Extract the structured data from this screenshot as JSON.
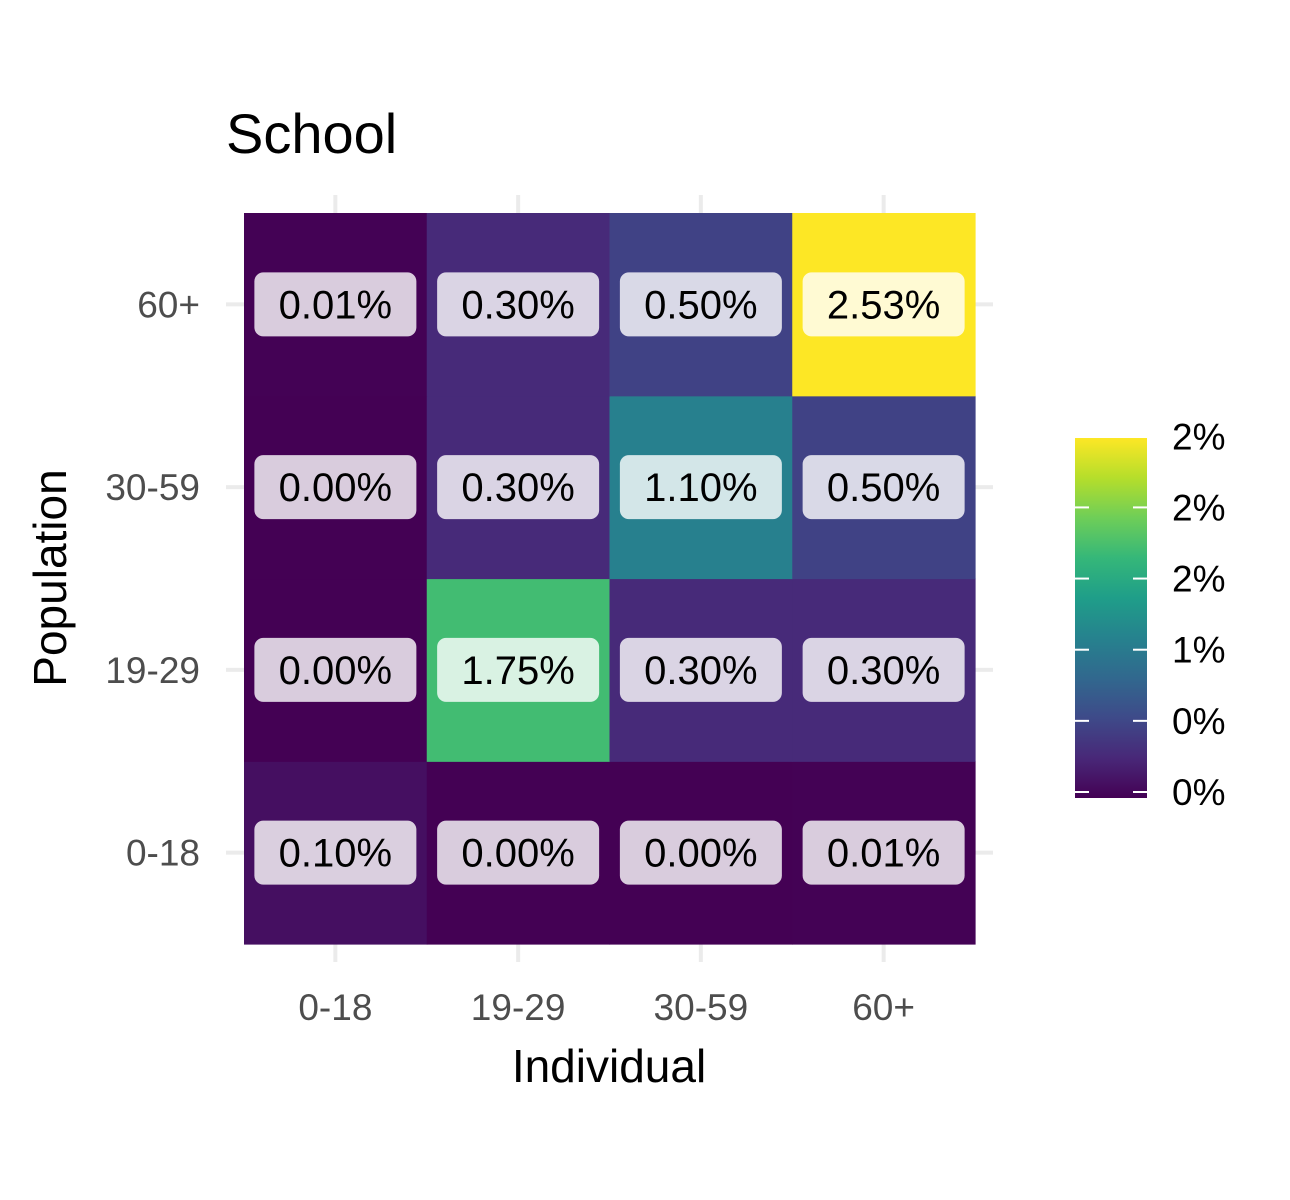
{
  "chart_data": {
    "type": "heatmap",
    "title": "School",
    "xlabel": "Individual",
    "ylabel": "Population",
    "x_categories": [
      "0-18",
      "19-29",
      "30-59",
      "60+"
    ],
    "y_categories": [
      "0-18",
      "19-29",
      "30-59",
      "60+"
    ],
    "cells": [
      {
        "x": "0-18",
        "y": "0-18",
        "value": 0.1,
        "label": "0.10%"
      },
      {
        "x": "19-29",
        "y": "0-18",
        "value": 0.0,
        "label": "0.00%"
      },
      {
        "x": "30-59",
        "y": "0-18",
        "value": 0.0,
        "label": "0.00%"
      },
      {
        "x": "60+",
        "y": "0-18",
        "value": 0.01,
        "label": "0.01%"
      },
      {
        "x": "0-18",
        "y": "19-29",
        "value": 0.0,
        "label": "0.00%"
      },
      {
        "x": "19-29",
        "y": "19-29",
        "value": 1.75,
        "label": "1.75%"
      },
      {
        "x": "30-59",
        "y": "19-29",
        "value": 0.3,
        "label": "0.30%"
      },
      {
        "x": "60+",
        "y": "19-29",
        "value": 0.3,
        "label": "0.30%"
      },
      {
        "x": "0-18",
        "y": "30-59",
        "value": 0.0,
        "label": "0.00%"
      },
      {
        "x": "19-29",
        "y": "30-59",
        "value": 0.3,
        "label": "0.30%"
      },
      {
        "x": "30-59",
        "y": "30-59",
        "value": 1.1,
        "label": "1.10%"
      },
      {
        "x": "60+",
        "y": "30-59",
        "value": 0.5,
        "label": "0.50%"
      },
      {
        "x": "0-18",
        "y": "60+",
        "value": 0.01,
        "label": "0.01%"
      },
      {
        "x": "19-29",
        "y": "60+",
        "value": 0.3,
        "label": "0.30%"
      },
      {
        "x": "30-59",
        "y": "60+",
        "value": 0.5,
        "label": "0.50%"
      },
      {
        "x": "60+",
        "y": "60+",
        "value": 2.53,
        "label": "2.53%"
      }
    ],
    "color_scale": {
      "name": "viridis",
      "min": 0.0,
      "max": 2.53,
      "legend_ticks": [
        {
          "value": 0.0,
          "label": "0%"
        },
        {
          "value": 0.5,
          "label": "0%"
        },
        {
          "value": 1.0,
          "label": "1%"
        },
        {
          "value": 1.5,
          "label": "2%"
        },
        {
          "value": 2.0,
          "label": "2%"
        },
        {
          "value": 2.5,
          "label": "2%"
        }
      ]
    },
    "legend_position": "right",
    "grid": true
  }
}
